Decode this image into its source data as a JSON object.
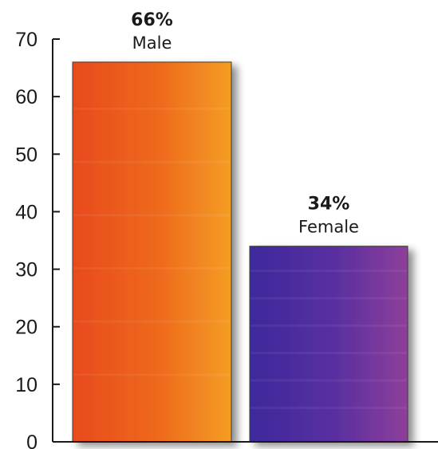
{
  "chart_data": {
    "type": "bar",
    "categories": [
      "Male",
      "Female"
    ],
    "values": [
      66,
      34
    ],
    "value_labels": [
      "66%",
      "34%"
    ],
    "ylim": [
      0,
      70
    ],
    "yticks": [
      0,
      10,
      20,
      30,
      40,
      50,
      60,
      70
    ],
    "ytick_labels": [
      "0",
      "10",
      "20",
      "30",
      "40",
      "50",
      "60",
      "70"
    ],
    "title": "",
    "xlabel": "",
    "ylabel": "",
    "grid": false,
    "legend": "none",
    "colors": {
      "Male": [
        "#e84e1b",
        "#f39a1e"
      ],
      "Female": [
        "#4a2ea0",
        "#8a3a9a"
      ]
    }
  }
}
